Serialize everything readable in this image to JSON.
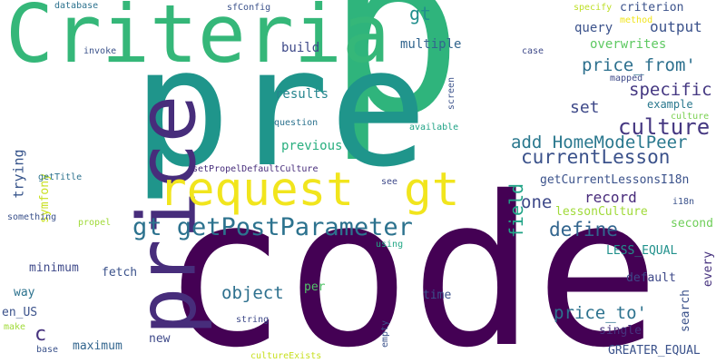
{
  "words": [
    {
      "text": "p",
      "color": "#2fb47c"
    },
    {
      "text": "code",
      "color": "#440154"
    },
    {
      "text": "pre",
      "color": "#1f958b"
    },
    {
      "text": "Criteria",
      "color": "#35b779"
    },
    {
      "text": "price",
      "color": "#472d7b"
    },
    {
      "text": "request",
      "color": "#f1e51d"
    },
    {
      "text": "gt",
      "color": "#f1e51d"
    },
    {
      "text": "gt getPostParameter",
      "color": "#2c728e"
    },
    {
      "text": "currentLesson",
      "color": "#3b528b"
    },
    {
      "text": "culture",
      "color": "#453781"
    },
    {
      "text": "add HomeModelPeer",
      "color": "#2a788e"
    },
    {
      "text": "field",
      "color": "#20a386"
    },
    {
      "text": "define",
      "color": "#32658e"
    },
    {
      "text": "specific",
      "color": "#453882"
    },
    {
      "text": "price_from'",
      "color": "#2d708e"
    },
    {
      "text": "price_to'",
      "color": "#2c728e"
    },
    {
      "text": "object",
      "color": "#2d708e"
    },
    {
      "text": "output",
      "color": "#3b528b"
    },
    {
      "text": "record",
      "color": "#472a7a"
    },
    {
      "text": "one",
      "color": "#3e4989"
    },
    {
      "text": "symfony",
      "color": "#c8e020"
    },
    {
      "text": "trying",
      "color": "#39568c"
    },
    {
      "text": "set",
      "color": "#3e4989"
    },
    {
      "text": "c",
      "color": "#46327e"
    },
    {
      "text": "multiple",
      "color": "#32658e"
    },
    {
      "text": "query",
      "color": "#3b528b"
    },
    {
      "text": "overwrites",
      "color": "#5ec962"
    },
    {
      "text": "criterion",
      "color": "#3b528b"
    },
    {
      "text": "gt",
      "color": "#218f8d"
    },
    {
      "text": "build",
      "color": "#3e4989"
    },
    {
      "text": "results",
      "color": "#25858e"
    },
    {
      "text": "previous",
      "color": "#29af7f"
    },
    {
      "text": "lessonCulture",
      "color": "#a0da39"
    },
    {
      "text": "getCurrentLessonsI18n",
      "color": "#3b528b"
    },
    {
      "text": "example",
      "color": "#2a788e"
    },
    {
      "text": "second",
      "color": "#6ece58"
    },
    {
      "text": "LESS_EQUAL",
      "color": "#21918c"
    },
    {
      "text": "minimum",
      "color": "#3e4989"
    },
    {
      "text": "fetch",
      "color": "#3b528b"
    },
    {
      "text": "way",
      "color": "#2c728e"
    },
    {
      "text": "per",
      "color": "#52c569"
    },
    {
      "text": "time",
      "color": "#3b528b"
    },
    {
      "text": "default",
      "color": "#3e4989"
    },
    {
      "text": "search",
      "color": "#3b528b"
    },
    {
      "text": "every",
      "color": "#46327e"
    },
    {
      "text": "single",
      "color": "#46337e"
    },
    {
      "text": "maximum",
      "color": "#32658e"
    },
    {
      "text": "new",
      "color": "#3e4989"
    },
    {
      "text": "GREATER_EQUAL",
      "color": "#3b528b"
    },
    {
      "text": "en_US",
      "color": "#3b528b"
    },
    {
      "text": "database",
      "color": "#2c728e"
    },
    {
      "text": "sfConfig",
      "color": "#3b528b"
    },
    {
      "text": "invoke",
      "color": "#3b528b"
    },
    {
      "text": "case",
      "color": "#3e4989"
    },
    {
      "text": "specify",
      "color": "#bddf26"
    },
    {
      "text": "method",
      "color": "#f1e51d"
    },
    {
      "text": "mapped",
      "color": "#3e4989"
    },
    {
      "text": "culture",
      "color": "#7ad151"
    },
    {
      "text": "screen",
      "color": "#3b528b"
    },
    {
      "text": "question",
      "color": "#2c728e"
    },
    {
      "text": "available",
      "color": "#20a386"
    },
    {
      "text": "setPropelDefaultCulture",
      "color": "#472d7b"
    },
    {
      "text": "getTitle",
      "color": "#2c728e"
    },
    {
      "text": "see",
      "color": "#3e4989"
    },
    {
      "text": "i18n",
      "color": "#3b528b"
    },
    {
      "text": "something",
      "color": "#3b528b"
    },
    {
      "text": "propel",
      "color": "#a0da39"
    },
    {
      "text": "using",
      "color": "#22a785"
    },
    {
      "text": "string",
      "color": "#3e4989"
    },
    {
      "text": "empty",
      "color": "#3b528b"
    },
    {
      "text": "make",
      "color": "#a0da39"
    },
    {
      "text": "base",
      "color": "#3b528b"
    },
    {
      "text": "cultureExists",
      "color": "#c8e020"
    }
  ]
}
